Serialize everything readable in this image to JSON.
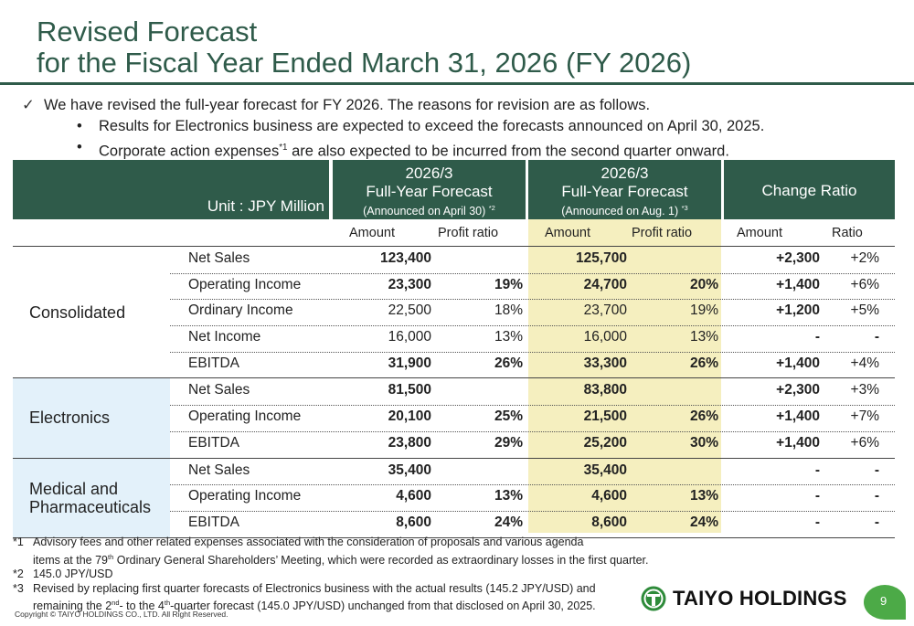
{
  "title": {
    "line1": "Revised Forecast",
    "line2": "for the Fiscal Year Ended March 31, 2026 (FY 2026)"
  },
  "bullets": {
    "check": "✓",
    "main": "We have revised the full-year forecast for FY 2026. The reasons for revision are as follows.",
    "sub1": "Results for Electronics business are expected to exceed the forecasts announced on April 30, 2025.",
    "sub2_a": "Corporate action expenses",
    "sub2_sup": "*1",
    "sub2_b": " are also expected to be incurred from the second quarter onward."
  },
  "table": {
    "unit": "Unit : JPY Million",
    "col_apr": {
      "year": "2026/3",
      "title": "Full-Year Forecast",
      "sub": "(Announced on April 30)",
      "sup": "*2"
    },
    "col_aug": {
      "year": "2026/3",
      "title": "Full-Year Forecast",
      "sub": "(Announced on Aug. 1)",
      "sup": "*3"
    },
    "col_chg": "Change Ratio",
    "sub_amount": "Amount",
    "sub_profit": "Profit ratio",
    "sub_ratio": "Ratio",
    "groups": [
      {
        "label": "Consolidated",
        "rows": [
          {
            "item": "Net Sales",
            "apr_amt": "123,400",
            "apr_pr": "",
            "aug_amt": "125,700",
            "aug_pr": "",
            "chg_amt": "+2,300",
            "chg_ratio": "+2%"
          },
          {
            "item": "Operating Income",
            "apr_amt": "23,300",
            "apr_pr": "19%",
            "aug_amt": "24,700",
            "aug_pr": "20%",
            "chg_amt": "+1,400",
            "chg_ratio": "+6%"
          },
          {
            "item": "Ordinary Income",
            "apr_amt": "22,500",
            "apr_pr": "18%",
            "aug_amt": "23,700",
            "aug_pr": "19%",
            "chg_amt": "+1,200",
            "chg_ratio": "+5%"
          },
          {
            "item": "Net Income",
            "apr_amt": "16,000",
            "apr_pr": "13%",
            "aug_amt": "16,000",
            "aug_pr": "13%",
            "chg_amt": "-",
            "chg_ratio": "-"
          },
          {
            "item": "EBITDA",
            "apr_amt": "31,900",
            "apr_pr": "26%",
            "aug_amt": "33,300",
            "aug_pr": "26%",
            "chg_amt": "+1,400",
            "chg_ratio": "+4%"
          }
        ]
      },
      {
        "label": "Electronics",
        "rows": [
          {
            "item": "Net Sales",
            "apr_amt": "81,500",
            "apr_pr": "",
            "aug_amt": "83,800",
            "aug_pr": "",
            "chg_amt": "+2,300",
            "chg_ratio": "+3%"
          },
          {
            "item": "Operating Income",
            "apr_amt": "20,100",
            "apr_pr": "25%",
            "aug_amt": "21,500",
            "aug_pr": "26%",
            "chg_amt": "+1,400",
            "chg_ratio": "+7%"
          },
          {
            "item": "EBITDA",
            "apr_amt": "23,800",
            "apr_pr": "29%",
            "aug_amt": "25,200",
            "aug_pr": "30%",
            "chg_amt": "+1,400",
            "chg_ratio": "+6%"
          }
        ]
      },
      {
        "label": "Medical and Pharmaceuticals",
        "rows": [
          {
            "item": "Net Sales",
            "apr_amt": "35,400",
            "apr_pr": "",
            "aug_amt": "35,400",
            "aug_pr": "",
            "chg_amt": "-",
            "chg_ratio": "-"
          },
          {
            "item": "Operating Income",
            "apr_amt": "4,600",
            "apr_pr": "13%",
            "aug_amt": "4,600",
            "aug_pr": "13%",
            "chg_amt": "-",
            "chg_ratio": "-"
          },
          {
            "item": "EBITDA",
            "apr_amt": "8,600",
            "apr_pr": "24%",
            "aug_amt": "8,600",
            "aug_pr": "24%",
            "chg_amt": "-",
            "chg_ratio": "-"
          }
        ]
      }
    ]
  },
  "notes": {
    "n1_key": "*1",
    "n1_line1": "Advisory fees and other related expenses associated with the consideration of proposals and various agenda",
    "n1_line2_a": "items at the 79",
    "n1_line2_sup": "th",
    "n1_line2_b": " Ordinary General Shareholders’ Meeting, which were recorded as extraordinary losses in the first quarter.",
    "n2_key": "*2",
    "n2": "145.0 JPY/USD",
    "n3_key": "*3",
    "n3_line1": "Revised by replacing first quarter forecasts of Electronics business with the actual results (145.2 JPY/USD)  and",
    "n3_line2_a": "remaining the 2",
    "n3_line2_sup1": "nd",
    "n3_line2_b": "- to the 4",
    "n3_line2_sup2": "th",
    "n3_line2_c": "-quarter forecast (145.0 JPY/USD) unchanged from that disclosed on April 30, 2025."
  },
  "footer": {
    "copyright": "Copyright © TAIYO HOLDINGS CO., LTD.  All Right Reserved.",
    "logo_text": "TAIYO HOLDINGS",
    "page": "9"
  },
  "colors": {
    "brand_green": "#2f5b4a",
    "highlight_yellow": "#f5efbf",
    "medical_blue": "#e3f1fa",
    "badge_green": "#4caa47"
  }
}
